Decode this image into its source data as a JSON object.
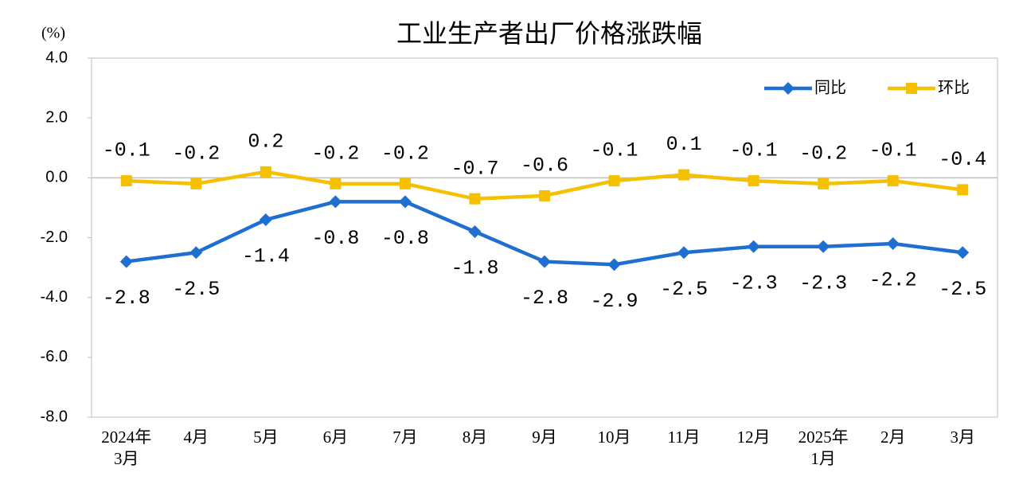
{
  "chart_data": {
    "type": "line",
    "title": "工业生产者出厂价格涨跌幅",
    "y_unit": "(%)",
    "categories": [
      "2024年\n3月",
      "4月",
      "5月",
      "6月",
      "7月",
      "8月",
      "9月",
      "10月",
      "11月",
      "12月",
      "2025年\n1月",
      "2月",
      "3月"
    ],
    "series": [
      {
        "name": "同比",
        "color": "#1f6fd1",
        "marker": "diamond",
        "label_position": "below",
        "values": [
          -2.8,
          -2.5,
          -1.4,
          -0.8,
          -0.8,
          -1.8,
          -2.8,
          -2.9,
          -2.5,
          -2.3,
          -2.3,
          -2.2,
          -2.5
        ]
      },
      {
        "name": "环比",
        "color": "#f5c000",
        "marker": "square",
        "label_position": "above",
        "values": [
          -0.1,
          -0.2,
          0.2,
          -0.2,
          -0.2,
          -0.7,
          -0.6,
          -0.1,
          0.1,
          -0.1,
          -0.2,
          -0.1,
          -0.4
        ]
      }
    ],
    "ylim": [
      -8,
      4
    ],
    "yticks": [
      {
        "value": 4,
        "label": "4.0"
      },
      {
        "value": 2,
        "label": "2.0"
      },
      {
        "value": 0,
        "label": "0.0"
      },
      {
        "value": -2,
        "label": "-2.0"
      },
      {
        "value": -4,
        "label": "-4.0"
      },
      {
        "value": -6,
        "label": "-6.0"
      },
      {
        "value": -8,
        "label": "-8.0"
      }
    ],
    "grid": false,
    "legend": "upper right"
  }
}
